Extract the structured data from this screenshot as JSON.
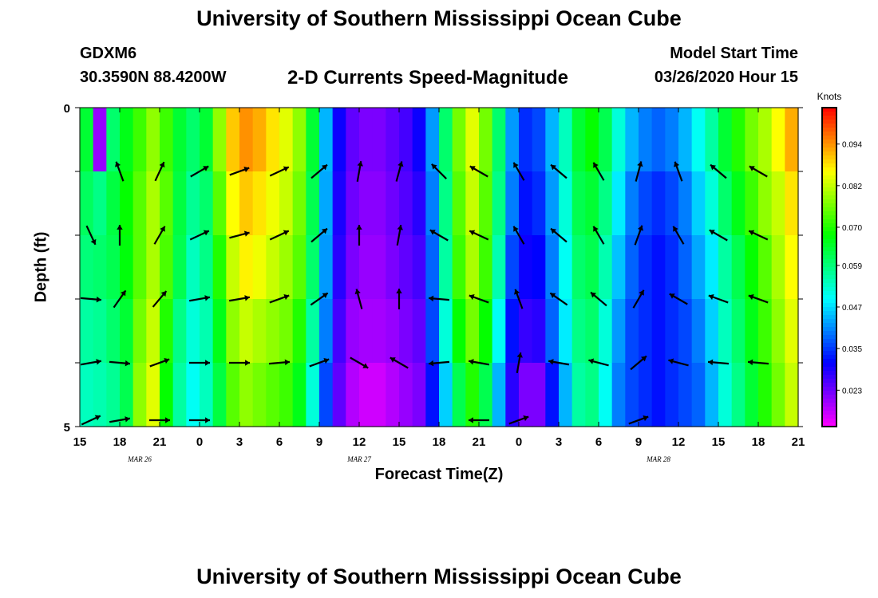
{
  "header": {
    "title": "University of Southern Mississippi Ocean Cube",
    "station_id": "GDXM6",
    "station_location": "30.3590N 88.4200W",
    "plot_title": "2-D Currents Speed-Magnitude",
    "model_start_label": "Model Start Time",
    "model_start_value": "03/26/2020 Hour 15"
  },
  "footer": {
    "title": "University of Southern Mississippi Ocean Cube"
  },
  "chart_data": {
    "type": "heatmap",
    "title": "2-D Currents Speed-Magnitude",
    "xlabel": "Forecast Time(Z)",
    "ylabel": "Depth (ft)",
    "x_tick_labels": [
      "15",
      "18",
      "21",
      "0",
      "3",
      "6",
      "9",
      "12",
      "15",
      "18",
      "21",
      "0",
      "3",
      "6",
      "9",
      "12",
      "15",
      "18",
      "21"
    ],
    "x_hours": [
      0,
      54
    ],
    "date_labels": [
      {
        "label": "MAR  26",
        "hour": 4.5
      },
      {
        "label": "MAR  27",
        "hour": 21
      },
      {
        "label": "MAR  28",
        "hour": 43.5
      }
    ],
    "y_tick_labels": [
      {
        "value": 0,
        "label": "0"
      },
      {
        "value": 5,
        "label": "5"
      }
    ],
    "ylim": [
      0,
      5
    ],
    "depth_rows": 5,
    "colorbar": {
      "units": "Knots",
      "range": [
        0.0125,
        0.1045
      ],
      "tick_labels": [
        "0.094",
        "0.082",
        "0.070",
        "0.059",
        "0.047",
        "0.035",
        "0.023"
      ],
      "tick_values": [
        0.094,
        0.082,
        0.07,
        0.059,
        0.047,
        0.035,
        0.023
      ]
    },
    "speed": [
      {
        "hour": 0,
        "values": [
          0.064,
          0.061,
          0.059,
          0.056,
          0.054
        ]
      },
      {
        "hour": 1,
        "values": [
          0.02,
          0.058,
          0.06,
          0.057,
          0.055
        ]
      },
      {
        "hour": 2,
        "values": [
          0.06,
          0.063,
          0.062,
          0.06,
          0.057
        ]
      },
      {
        "hour": 3,
        "values": [
          0.066,
          0.068,
          0.067,
          0.064,
          0.062
        ]
      },
      {
        "hour": 4,
        "values": [
          0.072,
          0.074,
          0.074,
          0.076,
          0.078
        ]
      },
      {
        "hour": 5,
        "values": [
          0.078,
          0.08,
          0.08,
          0.082,
          0.084
        ]
      },
      {
        "hour": 6,
        "values": [
          0.072,
          0.074,
          0.073,
          0.07,
          0.068
        ]
      },
      {
        "hour": 7,
        "values": [
          0.064,
          0.063,
          0.062,
          0.058,
          0.056
        ]
      },
      {
        "hour": 8,
        "values": [
          0.06,
          0.057,
          0.054,
          0.052,
          0.05
        ]
      },
      {
        "hour": 9,
        "values": [
          0.064,
          0.06,
          0.058,
          0.055,
          0.054
        ]
      },
      {
        "hour": 10,
        "values": [
          0.078,
          0.074,
          0.07,
          0.066,
          0.063
        ]
      },
      {
        "hour": 11,
        "values": [
          0.09,
          0.086,
          0.082,
          0.078,
          0.074
        ]
      },
      {
        "hour": 12,
        "values": [
          0.094,
          0.09,
          0.087,
          0.082,
          0.078
        ]
      },
      {
        "hour": 13,
        "values": [
          0.092,
          0.088,
          0.085,
          0.08,
          0.076
        ]
      },
      {
        "hour": 14,
        "values": [
          0.088,
          0.085,
          0.082,
          0.078,
          0.074
        ]
      },
      {
        "hour": 15,
        "values": [
          0.084,
          0.082,
          0.079,
          0.076,
          0.072
        ]
      },
      {
        "hour": 16,
        "values": [
          0.078,
          0.076,
          0.074,
          0.07,
          0.066
        ]
      },
      {
        "hour": 17,
        "values": [
          0.064,
          0.062,
          0.06,
          0.056,
          0.052
        ]
      },
      {
        "hour": 18,
        "values": [
          0.044,
          0.043,
          0.042,
          0.04,
          0.036
        ]
      },
      {
        "hour": 19,
        "values": [
          0.03,
          0.029,
          0.028,
          0.026,
          0.024
        ]
      },
      {
        "hour": 20,
        "values": [
          0.024,
          0.023,
          0.022,
          0.02,
          0.018
        ]
      },
      {
        "hour": 21,
        "values": [
          0.022,
          0.021,
          0.02,
          0.019,
          0.016
        ]
      },
      {
        "hour": 22,
        "values": [
          0.022,
          0.021,
          0.02,
          0.019,
          0.016
        ]
      },
      {
        "hour": 23,
        "values": [
          0.024,
          0.023,
          0.022,
          0.02,
          0.018
        ]
      },
      {
        "hour": 24,
        "values": [
          0.026,
          0.025,
          0.024,
          0.022,
          0.02
        ]
      },
      {
        "hour": 25,
        "values": [
          0.03,
          0.028,
          0.026,
          0.024,
          0.022
        ]
      },
      {
        "hour": 26,
        "values": [
          0.042,
          0.04,
          0.038,
          0.036,
          0.032
        ]
      },
      {
        "hour": 27,
        "values": [
          0.06,
          0.058,
          0.056,
          0.052,
          0.046
        ]
      },
      {
        "hour": 28,
        "values": [
          0.076,
          0.074,
          0.072,
          0.068,
          0.062
        ]
      },
      {
        "hour": 29,
        "values": [
          0.084,
          0.082,
          0.08,
          0.076,
          0.07
        ]
      },
      {
        "hour": 30,
        "values": [
          0.076,
          0.074,
          0.072,
          0.068,
          0.062
        ]
      },
      {
        "hour": 31,
        "values": [
          0.06,
          0.058,
          0.055,
          0.05,
          0.044
        ]
      },
      {
        "hour": 32,
        "values": [
          0.042,
          0.04,
          0.036,
          0.032,
          0.028
        ]
      },
      {
        "hour": 33,
        "values": [
          0.034,
          0.032,
          0.03,
          0.027,
          0.022
        ]
      },
      {
        "hour": 34,
        "values": [
          0.036,
          0.034,
          0.031,
          0.028,
          0.022
        ]
      },
      {
        "hour": 35,
        "values": [
          0.044,
          0.042,
          0.04,
          0.038,
          0.032
        ]
      },
      {
        "hour": 36,
        "values": [
          0.054,
          0.052,
          0.05,
          0.048,
          0.044
        ]
      },
      {
        "hour": 37,
        "values": [
          0.064,
          0.062,
          0.06,
          0.058,
          0.056
        ]
      },
      {
        "hour": 38,
        "values": [
          0.068,
          0.064,
          0.062,
          0.06,
          0.058
        ]
      },
      {
        "hour": 39,
        "values": [
          0.062,
          0.058,
          0.055,
          0.052,
          0.05
        ]
      },
      {
        "hour": 40,
        "values": [
          0.052,
          0.048,
          0.045,
          0.042,
          0.04
        ]
      },
      {
        "hour": 41,
        "values": [
          0.044,
          0.04,
          0.038,
          0.036,
          0.036
        ]
      },
      {
        "hour": 42,
        "values": [
          0.04,
          0.036,
          0.034,
          0.034,
          0.034
        ]
      },
      {
        "hour": 43,
        "values": [
          0.038,
          0.034,
          0.032,
          0.032,
          0.032
        ]
      },
      {
        "hour": 44,
        "values": [
          0.04,
          0.036,
          0.034,
          0.034,
          0.034
        ]
      },
      {
        "hour": 45,
        "values": [
          0.044,
          0.04,
          0.038,
          0.036,
          0.036
        ]
      },
      {
        "hour": 46,
        "values": [
          0.05,
          0.046,
          0.043,
          0.04,
          0.038
        ]
      },
      {
        "hour": 47,
        "values": [
          0.056,
          0.052,
          0.048,
          0.046,
          0.044
        ]
      },
      {
        "hour": 48,
        "values": [
          0.064,
          0.06,
          0.056,
          0.054,
          0.052
        ]
      },
      {
        "hour": 49,
        "values": [
          0.07,
          0.066,
          0.062,
          0.06,
          0.058
        ]
      },
      {
        "hour": 50,
        "values": [
          0.076,
          0.072,
          0.068,
          0.066,
          0.064
        ]
      },
      {
        "hour": 51,
        "values": [
          0.08,
          0.078,
          0.074,
          0.072,
          0.07
        ]
      },
      {
        "hour": 52,
        "values": [
          0.086,
          0.082,
          0.08,
          0.078,
          0.076
        ]
      },
      {
        "hour": 53,
        "values": [
          0.092,
          0.088,
          0.086,
          0.084,
          0.082
        ]
      }
    ],
    "vector_rows_depth": [
      1.0,
      2.0,
      3.0,
      4.0,
      5.0
    ],
    "vectors": [
      {
        "hour": 0,
        "dirs": [
          null,
          155,
          95,
          80,
          65
        ]
      },
      {
        "hour": 3,
        "dirs": [
          340,
          0,
          35,
          95,
          80
        ]
      },
      {
        "hour": 6,
        "dirs": [
          25,
          30,
          40,
          70,
          90
        ]
      },
      {
        "hour": 9,
        "dirs": [
          60,
          65,
          80,
          90,
          90
        ]
      },
      {
        "hour": 12,
        "dirs": [
          70,
          75,
          80,
          90,
          null
        ]
      },
      {
        "hour": 15,
        "dirs": [
          65,
          65,
          70,
          85,
          null
        ]
      },
      {
        "hour": 18,
        "dirs": [
          50,
          50,
          55,
          70,
          null
        ]
      },
      {
        "hour": 21,
        "dirs": [
          10,
          0,
          345,
          120,
          null
        ]
      },
      {
        "hour": 24,
        "dirs": [
          15,
          10,
          0,
          300,
          null
        ]
      },
      {
        "hour": 27,
        "dirs": [
          315,
          300,
          275,
          265,
          null
        ]
      },
      {
        "hour": 30,
        "dirs": [
          300,
          295,
          290,
          280,
          270
        ]
      },
      {
        "hour": 33,
        "dirs": [
          330,
          330,
          340,
          10,
          70
        ]
      },
      {
        "hour": 36,
        "dirs": [
          310,
          310,
          305,
          280,
          null
        ]
      },
      {
        "hour": 39,
        "dirs": [
          330,
          330,
          310,
          285,
          null
        ]
      },
      {
        "hour": 42,
        "dirs": [
          15,
          20,
          30,
          50,
          70
        ]
      },
      {
        "hour": 45,
        "dirs": [
          340,
          330,
          300,
          285,
          null
        ]
      },
      {
        "hour": 48,
        "dirs": [
          310,
          300,
          290,
          275,
          null
        ]
      },
      {
        "hour": 51,
        "dirs": [
          300,
          295,
          290,
          275,
          null
        ]
      }
    ]
  }
}
